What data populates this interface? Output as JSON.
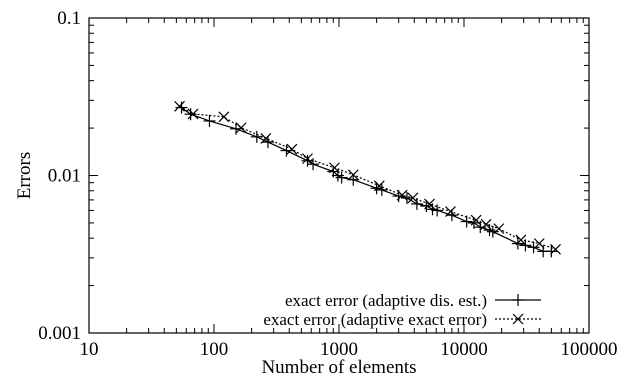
{
  "chart_data": {
    "type": "line",
    "xlabel": "Number of elements",
    "ylabel": "Errors",
    "x_scale": "log",
    "y_scale": "log",
    "xlim": [
      10,
      100000
    ],
    "ylim": [
      0.001,
      0.1
    ],
    "x_ticks": [
      "10",
      "100",
      "1000",
      "10000",
      "100000"
    ],
    "y_ticks": [
      "0.001",
      "0.01",
      "0.1"
    ],
    "grid": false,
    "legend_position": "bottom-right",
    "series": [
      {
        "name": "exact error (adaptive dis. est.)",
        "line_style": "solid",
        "marker": "plus",
        "color": "#000000",
        "x": [
          55,
          65,
          92,
          150,
          220,
          270,
          380,
          560,
          620,
          900,
          980,
          1050,
          1300,
          2000,
          2200,
          3000,
          3500,
          4200,
          5000,
          5600,
          6100,
          8000,
          10500,
          12000,
          13500,
          16000,
          17000,
          27000,
          31000,
          36000,
          43000,
          50000
        ],
        "y": [
          0.027,
          0.0245,
          0.0222,
          0.0198,
          0.0176,
          0.0163,
          0.0144,
          0.0124,
          0.0118,
          0.0106,
          0.01,
          0.0097,
          0.0094,
          0.0083,
          0.0081,
          0.0074,
          0.0072,
          0.0066,
          0.0064,
          0.0061,
          0.006,
          0.0056,
          0.0051,
          0.005,
          0.0047,
          0.0045,
          0.0044,
          0.0037,
          0.0036,
          0.0035,
          0.0033,
          0.0033
        ]
      },
      {
        "name": "exact error (adaptive exact error)",
        "line_style": "dotted",
        "marker": "x",
        "color": "#000000",
        "x": [
          53,
          68,
          120,
          165,
          260,
          420,
          560,
          920,
          1300,
          2100,
          3200,
          3900,
          5300,
          7800,
          12500,
          15000,
          19000,
          28500,
          40000,
          54000
        ],
        "y": [
          0.0275,
          0.0246,
          0.0236,
          0.0201,
          0.0172,
          0.0147,
          0.0128,
          0.0112,
          0.0101,
          0.0086,
          0.0075,
          0.0072,
          0.0066,
          0.0059,
          0.0052,
          0.0049,
          0.0046,
          0.0039,
          0.0037,
          0.0034
        ]
      }
    ]
  }
}
